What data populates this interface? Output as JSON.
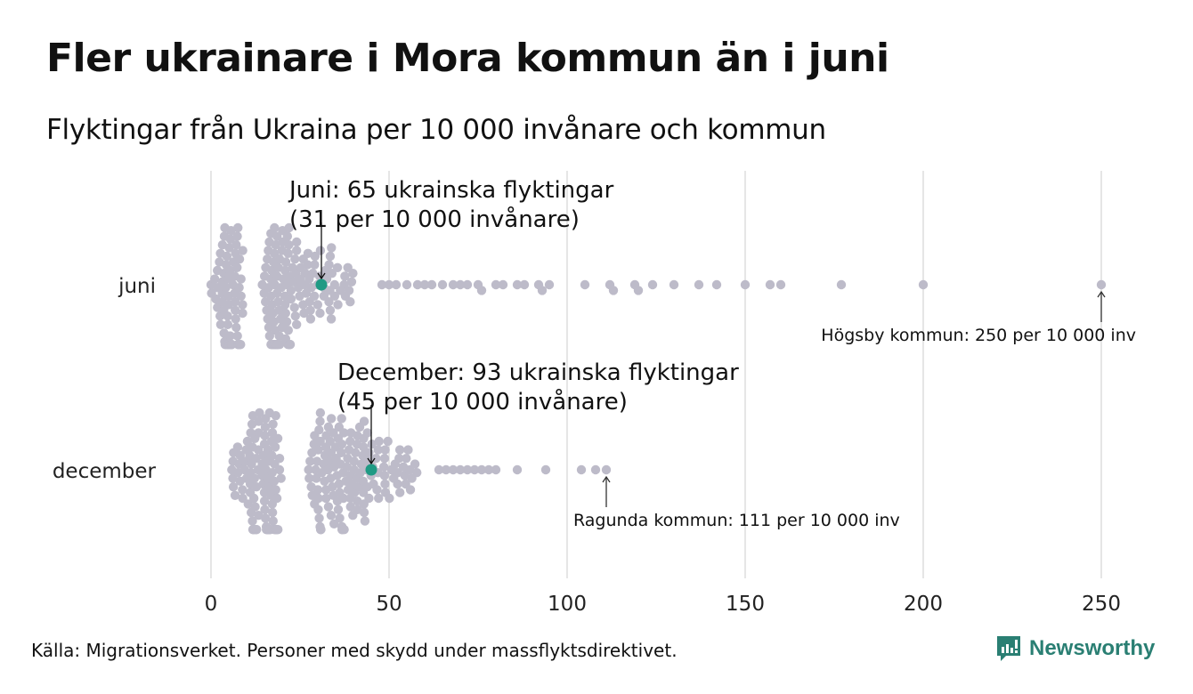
{
  "header": {
    "title": "Fler ukrainare i Mora kommun än i juni",
    "subtitle": "Flyktingar från Ukraina per 10 000 invånare och kommun"
  },
  "footer": {
    "source": "Källa: Migrationsverket. Personer med skydd under massflyktsdirektivet.",
    "brand": "Newsworthy"
  },
  "colors": {
    "dot": "#bdbbc9",
    "highlight": "#1f9a84",
    "grid": "#d4d4d4",
    "text": "#111111",
    "brand": "#2a7f73"
  },
  "chart_data": {
    "type": "scatter",
    "subtype": "beeswarm",
    "title": "Fler ukrainare i Mora kommun än i juni",
    "subtitle": "Flyktingar från Ukraina per 10 000 invånare och kommun",
    "xlabel": "",
    "ylabel": "",
    "xlim": [
      0,
      260
    ],
    "xticks": [
      0,
      50,
      100,
      150,
      200,
      250
    ],
    "xtick_labels": [
      "0",
      "50",
      "100",
      "150",
      "200",
      "250"
    ],
    "grid": true,
    "categories": [
      "juni",
      "december"
    ],
    "series": [
      {
        "name": "juni",
        "label": "juni",
        "cluster_range": [
          0,
          46
        ],
        "cluster_peak": 15,
        "outliers": [
          48,
          50,
          52,
          55,
          58,
          60,
          62,
          65,
          68,
          70,
          72,
          75,
          76,
          80,
          82,
          86,
          88,
          92,
          93,
          95,
          105,
          112,
          113,
          119,
          120,
          124,
          130,
          137,
          142,
          150,
          157,
          160,
          177,
          200,
          250
        ],
        "highlight": {
          "value": 31,
          "name": "Mora kommun",
          "annotation": [
            "Juni: 65 ukrainska flyktingar",
            "(31 per 10 000 invånare)"
          ]
        },
        "max": {
          "value": 250,
          "annotation": "Högsby kommun: 250 per 10 000 inv"
        }
      },
      {
        "name": "december",
        "label": "december",
        "cluster_range": [
          4,
          62
        ],
        "cluster_peak": 28,
        "outliers": [
          64,
          66,
          68,
          70,
          72,
          74,
          76,
          78,
          80,
          86,
          94,
          104,
          108,
          111
        ],
        "highlight": {
          "value": 45,
          "name": "Mora kommun",
          "annotation": [
            "December: 93 ukrainska flyktingar",
            "(45 per 10 000 invånare)"
          ]
        },
        "max": {
          "value": 111,
          "annotation": "Ragunda kommun: 111 per 10 000 inv"
        }
      }
    ]
  }
}
